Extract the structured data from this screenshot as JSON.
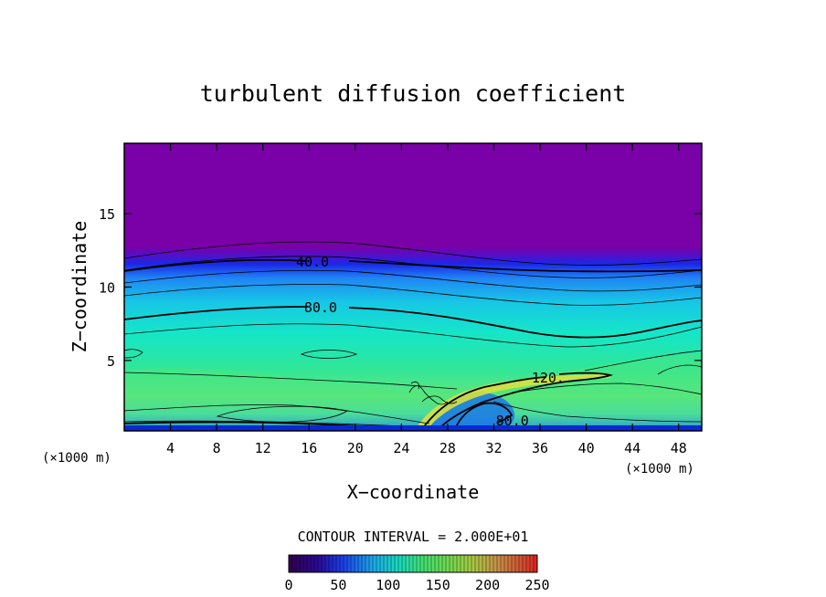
{
  "chart_data": {
    "type": "contour",
    "title": "turbulent diffusion coefficient",
    "xlabel": "X−coordinate",
    "ylabel": "Z−coordinate",
    "x_unit_label": "(×1000 m)",
    "z_unit_label": "(×1000 m)",
    "xlim": [
      0,
      50
    ],
    "ylim": [
      0.2,
      19.8
    ],
    "x_ticks": [
      4,
      8,
      12,
      16,
      20,
      24,
      28,
      32,
      36,
      40,
      44,
      48
    ],
    "x_tick_labels": [
      "4",
      "8",
      "12",
      "16",
      "20",
      "24",
      "28",
      "32",
      "36",
      "40",
      "44",
      "48"
    ],
    "y_ticks": [
      5,
      10,
      15
    ],
    "y_tick_labels": [
      "5",
      "10",
      "15"
    ],
    "contour_interval_text": "CONTOUR INTERVAL = 2.000E+01",
    "contour_labels": [
      {
        "text": "40.0",
        "x": 16.3,
        "z": 11.7
      },
      {
        "text": "80.0",
        "x": 17.0,
        "z": 8.6
      },
      {
        "text": "120.",
        "x": 36.7,
        "z": 3.8
      },
      {
        "text": "80.0",
        "x": 33.6,
        "z": 0.9
      }
    ],
    "colorbar": {
      "range": [
        0,
        250
      ],
      "ticks": [
        0,
        50,
        100,
        150,
        200,
        250
      ],
      "tick_labels": [
        "0",
        "50",
        "100",
        "150",
        "200",
        "250"
      ]
    },
    "colors": {
      "top_region": "#7a00a8",
      "high_mid": "#18d8b0",
      "green": "#3ce27a",
      "deep_blue": "#0a28d8"
    }
  }
}
